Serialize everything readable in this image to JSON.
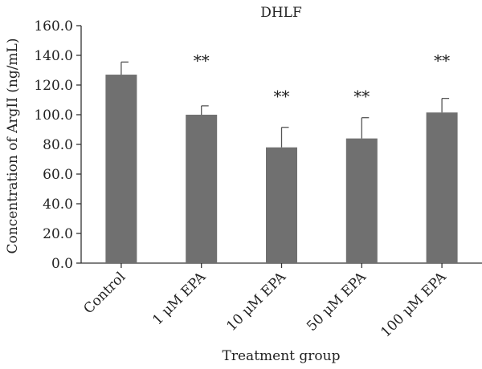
{
  "chart_data": {
    "type": "bar",
    "title": "DHLF",
    "xlabel": "Treatment group",
    "ylabel": "Concentration of ArgII (ng/mL)",
    "categories": [
      "Control",
      "1 μM EPA",
      "10 μM EPA",
      "50 μM EPA",
      "100 μM EPA"
    ],
    "values": [
      127.0,
      100.0,
      78.0,
      84.0,
      101.5
    ],
    "errors": [
      8.5,
      6.0,
      13.5,
      14.0,
      9.5
    ],
    "annotations": [
      "",
      "**",
      "**",
      "**",
      "**"
    ],
    "ylim": [
      0,
      160
    ],
    "yticks": [
      "0.0",
      "20.0",
      "40.0",
      "60.0",
      "80.0",
      "100.0",
      "120.0",
      "140.0",
      "160.0"
    ],
    "grid": false,
    "bar_color": "#707070"
  }
}
